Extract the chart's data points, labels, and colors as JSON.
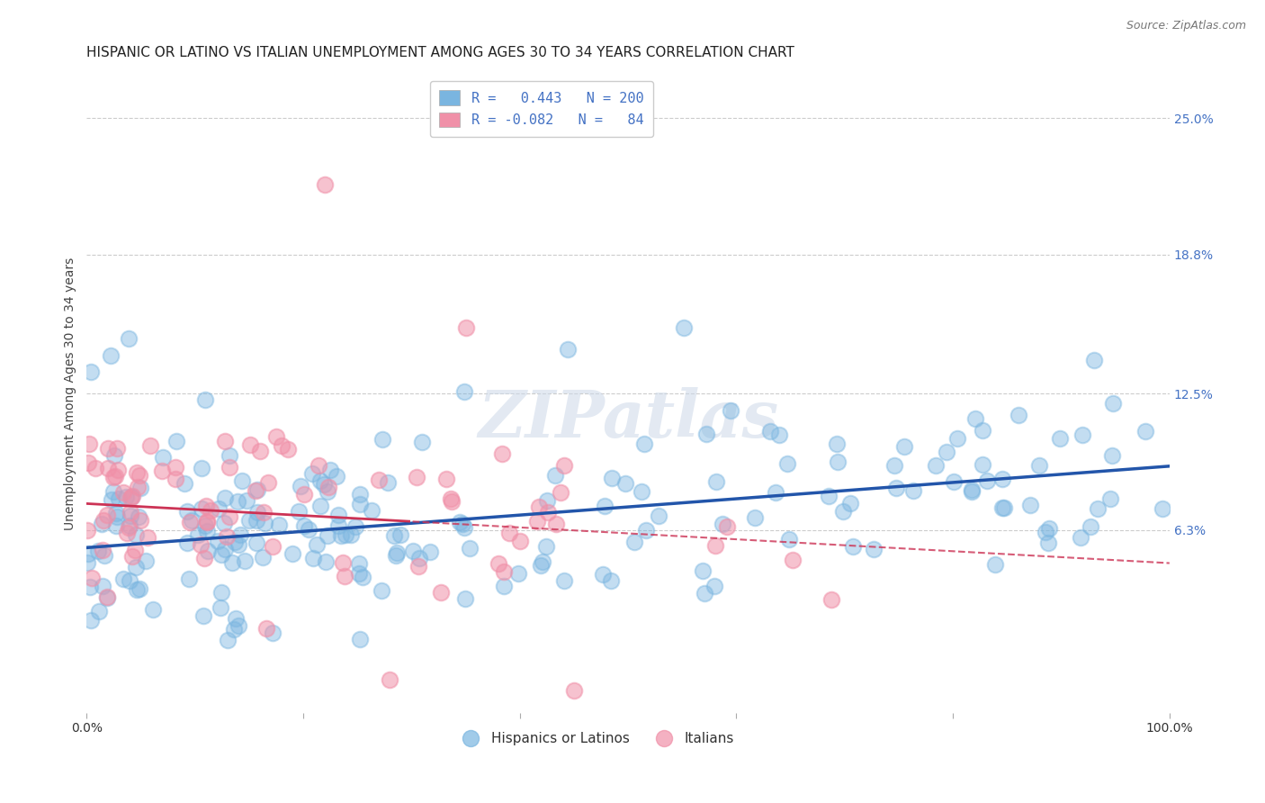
{
  "title": "HISPANIC OR LATINO VS ITALIAN UNEMPLOYMENT AMONG AGES 30 TO 34 YEARS CORRELATION CHART",
  "source": "Source: ZipAtlas.com",
  "ylabel": "Unemployment Among Ages 30 to 34 years",
  "xlim": [
    0,
    100
  ],
  "ylim": [
    -2,
    27
  ],
  "right_ytick_positions": [
    6.3,
    12.5,
    18.8,
    25.0
  ],
  "right_ytick_labels": [
    "6.3%",
    "12.5%",
    "18.8%",
    "25.0%"
  ],
  "grid_color": "#cccccc",
  "background_color": "#ffffff",
  "blue_color": "#7ab5e0",
  "blue_line_color": "#2255aa",
  "pink_color": "#f090a8",
  "pink_line_color": "#cc3355",
  "watermark": "ZIPatlas",
  "series1_label": "Hispanics or Latinos",
  "series2_label": "Italians",
  "R1": 0.443,
  "N1": 200,
  "R2": -0.082,
  "N2": 84,
  "legend_R1_text": "R =   0.443   N = 200",
  "legend_R2_text": "R = -0.082   N =   84",
  "title_fontsize": 11,
  "axis_label_fontsize": 10,
  "tick_fontsize": 10,
  "legend_fontsize": 11,
  "watermark_fontsize": 52,
  "source_fontsize": 9,
  "blue_trend_y0": 5.5,
  "blue_trend_y1": 9.2,
  "pink_trend_y0": 7.5,
  "pink_trend_y1": 4.8
}
